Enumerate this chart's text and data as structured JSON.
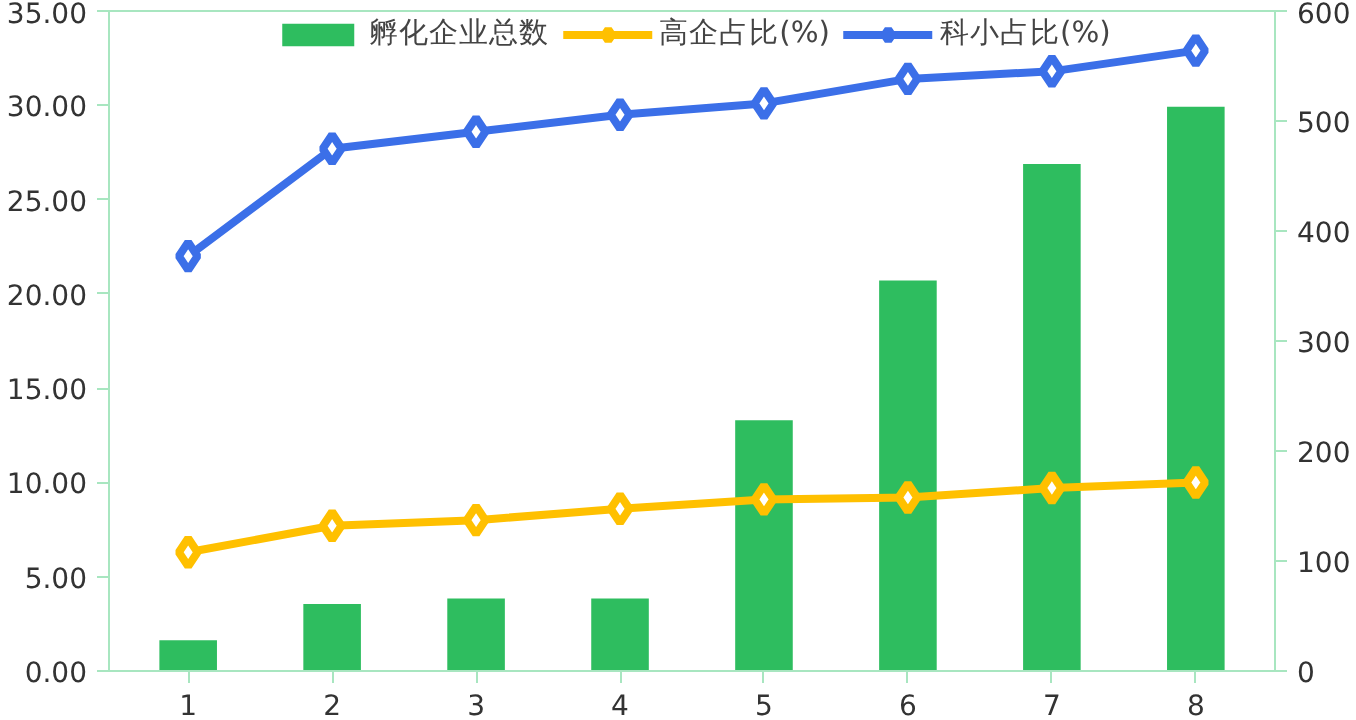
{
  "chart_data": {
    "type": "bar",
    "categories": [
      "1",
      "2",
      "3",
      "4",
      "5",
      "6",
      "7",
      "8"
    ],
    "series": [
      {
        "name": "孵化企业总数",
        "axis": "y2",
        "color": "#2ebd5f",
        "values": [
          28,
          61,
          66,
          66,
          228,
          355,
          461,
          513
        ]
      },
      {
        "name": "高企占比(%)",
        "type": "line",
        "color": "#ffc000",
        "marker": "diamond",
        "values": [
          6.3,
          7.7,
          8.0,
          8.6,
          9.1,
          9.2,
          9.7,
          10.0
        ]
      },
      {
        "name": "科小占比(%)",
        "type": "line",
        "color": "#3b6fe8",
        "marker": "diamond",
        "values": [
          22.0,
          27.7,
          28.6,
          29.5,
          30.1,
          31.4,
          31.8,
          32.9
        ]
      }
    ],
    "ylim": [
      0,
      35
    ],
    "yticks": [
      {
        "value": 0,
        "label": "0.00"
      },
      {
        "value": 5,
        "label": "5.00"
      },
      {
        "value": 10,
        "label": "10.00"
      },
      {
        "value": 15,
        "label": "15.00"
      },
      {
        "value": 20,
        "label": "20.00"
      },
      {
        "value": 25,
        "label": "25.00"
      },
      {
        "value": 30,
        "label": "30.00"
      },
      {
        "value": 35,
        "label": "35.00"
      }
    ],
    "y2lim": [
      0,
      600
    ],
    "y2ticks": [
      0,
      100,
      200,
      300,
      400,
      500,
      600
    ],
    "grid": false,
    "legend": "top",
    "line_style": "solid"
  }
}
